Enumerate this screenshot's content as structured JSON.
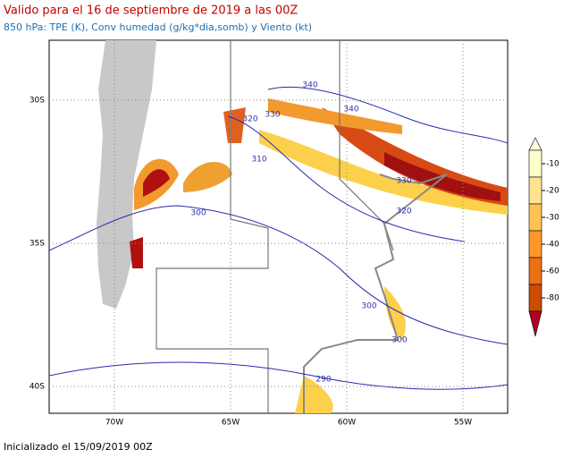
{
  "header": {
    "title": "Valido para el 16 de septiembre de 2019 a las 00Z",
    "subtitle": "850 hPa: TPE (K), Conv humedad (g/kg*dia,somb) y Viento (kt)"
  },
  "map": {
    "lat_labels": [
      "30S",
      "35S",
      "40S"
    ],
    "lon_labels": [
      "70W",
      "65W",
      "60W",
      "55W"
    ],
    "contour_labels": [
      340,
      340,
      320,
      330,
      310,
      330,
      320,
      300,
      300,
      300,
      290
    ]
  },
  "colorbar": {
    "levels": [
      -10,
      -20,
      -30,
      -40,
      -60,
      -80
    ]
  },
  "footer": {
    "text": "Inicializado el 15/09/2019 00Z"
  }
}
